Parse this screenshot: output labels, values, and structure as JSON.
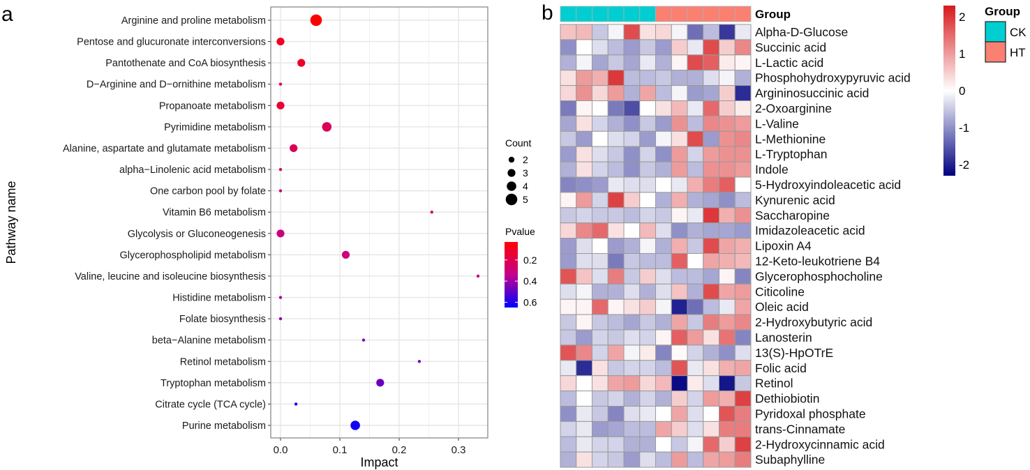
{
  "chart_data": [
    {
      "type": "scatter",
      "panel_label": "a",
      "title": "",
      "xlabel": "Impact",
      "ylabel": "Pathway name",
      "xlim": [
        -0.0165,
        0.35
      ],
      "xticks": [
        0.0,
        0.1,
        0.2,
        0.3
      ],
      "xtick_labels": [
        "0.0",
        "0.1",
        "0.2",
        "0.3"
      ],
      "grid": true,
      "points": [
        {
          "pathway": "Arginine and proline metabolism",
          "impact": 0.06,
          "count": 5,
          "pvalue": 0.03
        },
        {
          "pathway": "Pentose and glucuronate interconversions",
          "impact": 0.0,
          "count": 3,
          "pvalue": 0.1
        },
        {
          "pathway": "Pantothenate and CoA biosynthesis",
          "impact": 0.035,
          "count": 3,
          "pvalue": 0.12
        },
        {
          "pathway": "D−Arginine and D−ornithine metabolism",
          "impact": 0.0,
          "count": 1,
          "pvalue": 0.15
        },
        {
          "pathway": "Propanoate metabolism",
          "impact": 0.0,
          "count": 3,
          "pvalue": 0.15
        },
        {
          "pathway": "Pyrimidine metabolism",
          "impact": 0.078,
          "count": 4,
          "pvalue": 0.22
        },
        {
          "pathway": "Alanine, aspartate and glutamate metabolism",
          "impact": 0.022,
          "count": 3,
          "pvalue": 0.22
        },
        {
          "pathway": "alpha−Linolenic acid metabolism",
          "impact": 0.0,
          "count": 1,
          "pvalue": 0.25
        },
        {
          "pathway": "One carbon pool by folate",
          "impact": 0.0,
          "count": 1,
          "pvalue": 0.27
        },
        {
          "pathway": "Vitamin B6 metabolism",
          "impact": 0.255,
          "count": 1,
          "pvalue": 0.28
        },
        {
          "pathway": "Glycolysis or Gluconeogenesis",
          "impact": 0.0,
          "count": 3,
          "pvalue": 0.3
        },
        {
          "pathway": "Glycerophospholipid metabolism",
          "impact": 0.11,
          "count": 3,
          "pvalue": 0.3
        },
        {
          "pathway": "Valine, leucine and isoleucine biosynthesis",
          "impact": 0.333,
          "count": 1,
          "pvalue": 0.33
        },
        {
          "pathway": "Histidine metabolism",
          "impact": 0.0,
          "count": 1,
          "pvalue": 0.38
        },
        {
          "pathway": "Folate biosynthesis",
          "impact": 0.0,
          "count": 1,
          "pvalue": 0.42
        },
        {
          "pathway": "beta−Alanine metabolism",
          "impact": 0.14,
          "count": 1,
          "pvalue": 0.45
        },
        {
          "pathway": "Retinol metabolism",
          "impact": 0.234,
          "count": 1,
          "pvalue": 0.45
        },
        {
          "pathway": "Tryptophan metabolism",
          "impact": 0.168,
          "count": 3,
          "pvalue": 0.48
        },
        {
          "pathway": "Citrate cycle (TCA cycle)",
          "impact": 0.026,
          "count": 1,
          "pvalue": 0.6
        },
        {
          "pathway": "Purine metabolism",
          "impact": 0.126,
          "count": 4,
          "pvalue": 0.62
        }
      ],
      "legend": {
        "placement": "right",
        "size_title": "Count",
        "size_values": [
          2,
          3,
          4,
          5
        ],
        "color_title": "Pvalue",
        "color_range": [
          0.03,
          0.65
        ],
        "color_ticks": [
          0.2,
          0.4,
          0.6
        ],
        "color_low": "#ff0000",
        "color_high": "#0000ff"
      }
    },
    {
      "type": "heatmap",
      "panel_label": "b",
      "title": "",
      "columns": 12,
      "group_annotation": {
        "title": "Group",
        "values": [
          "CK",
          "CK",
          "CK",
          "CK",
          "CK",
          "CK",
          "HT",
          "HT",
          "HT",
          "HT",
          "HT",
          "HT"
        ],
        "legend": [
          {
            "label": "CK",
            "color": "#00ced1"
          },
          {
            "label": "HT",
            "color": "#fa8072"
          }
        ]
      },
      "row_labels": [
        "Alpha-D-Glucose",
        "Succinic acid",
        "L-Lactic acid",
        "Phosphohydroxypyruvic acid",
        "Argininosuccinic acid",
        "2-Oxoarginine",
        "L-Valine",
        "L-Methionine",
        "L-Tryptophan",
        "Indole",
        "5-Hydroxyindoleacetic acid",
        "Kynurenic acid",
        "Saccharopine",
        "Imidazoleacetic acid",
        "Lipoxin A4",
        "12-Keto-leukotriene B4",
        "Glycerophosphocholine",
        "Citicoline",
        "Oleic acid",
        "2-Hydroxybutyric acid",
        "Lanosterin",
        "13(S)-HpOTrE",
        "Folic acid",
        "Retinol",
        "Dethiobiotin",
        "Pyridoxal phosphate",
        "trans-Cinnamate",
        "2-Hydroxycinnamic acid",
        "Subaphylline"
      ],
      "values": [
        [
          0.6,
          0.7,
          -0.5,
          -0.1,
          1.8,
          0.3,
          0.4,
          -0.1,
          -1.3,
          -0.6,
          -1.8,
          -0.2
        ],
        [
          -1.0,
          0.0,
          -0.3,
          -0.6,
          -0.9,
          -0.5,
          -0.9,
          0.5,
          -0.2,
          1.8,
          0.5,
          1.2
        ],
        [
          -0.7,
          -0.1,
          -0.8,
          -0.5,
          -0.8,
          -0.2,
          -0.7,
          0.1,
          1.8,
          1.6,
          0.2,
          0.1
        ],
        [
          0.3,
          1.0,
          0.8,
          2.0,
          -0.6,
          -0.6,
          -0.5,
          -0.7,
          -0.7,
          -0.3,
          -0.1,
          -0.7
        ],
        [
          0.4,
          1.1,
          0.4,
          1.0,
          -0.7,
          0.9,
          -0.6,
          -0.1,
          -0.9,
          -0.8,
          0.5,
          -1.9
        ],
        [
          -1.2,
          0.1,
          0.0,
          -1.2,
          -1.6,
          0.0,
          0.3,
          0.7,
          -0.2,
          1.5,
          0.5,
          0.2
        ],
        [
          -0.8,
          0.3,
          -0.4,
          -0.7,
          -1.0,
          -0.5,
          -0.9,
          1.1,
          -0.6,
          1.2,
          1.1,
          1.0
        ],
        [
          -0.5,
          -0.9,
          0.0,
          -0.3,
          -0.4,
          -0.9,
          -0.1,
          0.3,
          1.8,
          -0.9,
          1.1,
          1.2
        ],
        [
          -0.9,
          0.3,
          -0.3,
          -0.5,
          -1.0,
          -0.4,
          -1.0,
          1.0,
          -0.4,
          1.0,
          1.1,
          1.1
        ],
        [
          -0.7,
          0.3,
          -0.4,
          -0.6,
          -1.0,
          -0.5,
          -0.7,
          1.0,
          -0.6,
          1.1,
          1.1,
          1.0
        ],
        [
          -1.1,
          -1.0,
          -0.9,
          -0.2,
          -0.3,
          -0.3,
          0.0,
          -0.2,
          0.8,
          1.3,
          1.6,
          0.0
        ],
        [
          0.1,
          1.0,
          -0.4,
          1.9,
          0.5,
          0.0,
          -0.7,
          0.8,
          -0.7,
          -0.8,
          -1.0,
          -0.6
        ],
        [
          -0.5,
          -0.4,
          -0.5,
          -0.5,
          -0.6,
          -0.4,
          -0.5,
          0.1,
          -0.2,
          2.0,
          0.8,
          1.1
        ],
        [
          0.4,
          1.2,
          1.5,
          0.3,
          0.0,
          0.7,
          -0.3,
          -1.0,
          -0.7,
          -0.8,
          -0.8,
          -0.9
        ],
        [
          -0.9,
          -0.3,
          0.0,
          -0.9,
          -0.7,
          -0.1,
          -0.7,
          0.8,
          -0.5,
          1.8,
          0.9,
          0.8
        ],
        [
          -0.9,
          -0.3,
          -0.3,
          -1.2,
          -0.5,
          -0.6,
          -0.6,
          1.6,
          0.0,
          0.9,
          0.8,
          0.7
        ],
        [
          1.7,
          0.6,
          -0.3,
          1.3,
          -0.5,
          0.5,
          -0.3,
          -0.6,
          -0.6,
          -0.8,
          0.1,
          -1.1
        ],
        [
          -0.3,
          -0.1,
          -0.7,
          -0.7,
          -0.3,
          -0.7,
          -0.3,
          0.6,
          -0.7,
          1.8,
          0.9,
          1.0
        ],
        [
          0.1,
          0.1,
          1.5,
          0.1,
          0.3,
          0.5,
          -0.1,
          -2.0,
          -1.3,
          -0.6,
          -0.2,
          0.9
        ],
        [
          -0.5,
          0.1,
          -0.5,
          -0.6,
          -0.8,
          -0.5,
          -0.7,
          0.9,
          -0.5,
          1.3,
          1.0,
          1.2
        ],
        [
          -0.5,
          -0.9,
          -0.4,
          -0.5,
          -0.3,
          -0.4,
          0.1,
          1.6,
          1.0,
          0.3,
          1.4,
          -1.1
        ],
        [
          1.7,
          1.2,
          -0.4,
          0.9,
          -0.1,
          0.2,
          -1.1,
          0.05,
          -0.4,
          -0.7,
          -1.0,
          -0.3
        ],
        [
          -0.2,
          -1.9,
          0.3,
          -0.5,
          -0.4,
          -0.4,
          -0.6,
          1.7,
          -0.2,
          0.3,
          0.8,
          0.9
        ],
        [
          0.4,
          0.0,
          0.3,
          0.9,
          1.0,
          0.4,
          0.7,
          -2.2,
          0.2,
          -0.3,
          -2.1,
          -0.5
        ],
        [
          -0.6,
          0.0,
          -0.5,
          -0.4,
          -0.7,
          -0.4,
          -0.7,
          0.5,
          -0.4,
          1.0,
          0.8,
          1.9
        ],
        [
          -1.0,
          -0.2,
          -0.5,
          -1.1,
          -0.3,
          -0.2,
          0.0,
          0.9,
          -0.3,
          0.0,
          1.7,
          1.3
        ],
        [
          -0.4,
          -0.2,
          -0.9,
          -0.8,
          -0.6,
          -0.6,
          0.9,
          0.5,
          -0.3,
          0.3,
          1.3,
          1.3
        ],
        [
          -0.6,
          -0.2,
          -0.4,
          -0.4,
          -0.7,
          -0.7,
          0.0,
          -0.5,
          -0.1,
          1.5,
          0.5,
          1.9
        ],
        [
          -0.7,
          0.3,
          -0.4,
          -0.5,
          -0.9,
          -0.3,
          -0.6,
          1.0,
          -0.6,
          0.9,
          1.0,
          1.3
        ]
      ],
      "color_scale": {
        "range": [
          -2.3,
          2.3
        ],
        "ticks": [
          2,
          1,
          0,
          -1,
          -2
        ],
        "tick_labels": [
          "2",
          "1",
          "0",
          "-1",
          "-2"
        ],
        "low": "#000080",
        "mid": "#ffffff",
        "high": "#d7191c"
      },
      "legend": {
        "placement": "right"
      }
    }
  ]
}
